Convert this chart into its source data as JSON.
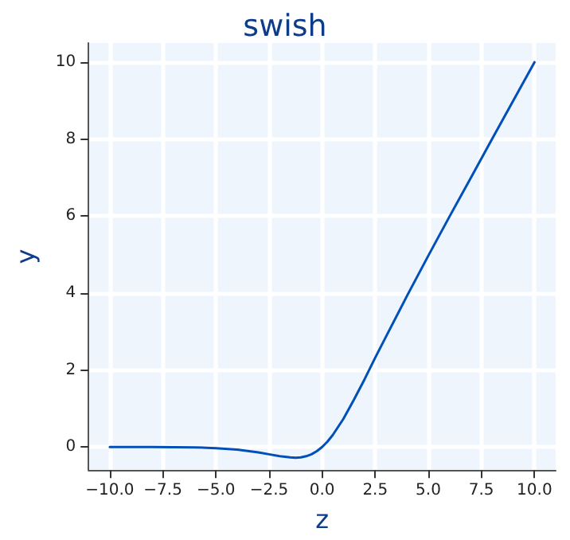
{
  "chart_data": {
    "type": "line",
    "title": "swish",
    "xlabel": "z",
    "ylabel": "y",
    "x": [
      -10,
      -8,
      -6,
      -5,
      -4,
      -3,
      -2.5,
      -2,
      -1.5,
      -1.25,
      -1,
      -0.75,
      -0.5,
      -0.25,
      0,
      0.25,
      0.5,
      1,
      1.5,
      2,
      2.5,
      3,
      4,
      5,
      6,
      7,
      8,
      9,
      10
    ],
    "series": [
      {
        "color": "#0050b8",
        "values": [
          0.0,
          0.0,
          -0.01,
          -0.03,
          -0.07,
          -0.14,
          -0.19,
          -0.24,
          -0.27,
          -0.28,
          -0.27,
          -0.24,
          -0.19,
          -0.11,
          0.0,
          0.14,
          0.31,
          0.73,
          1.23,
          1.76,
          2.32,
          2.86,
          3.93,
          4.97,
          5.99,
          6.99,
          8.0,
          9.0,
          10.0
        ]
      }
    ],
    "xlim": [
      -11,
      11
    ],
    "ylim": [
      -0.6,
      10.5
    ],
    "xticks": [
      {
        "value": -10,
        "label": "−10.0"
      },
      {
        "value": -7.5,
        "label": "−7.5"
      },
      {
        "value": -5,
        "label": "−5.0"
      },
      {
        "value": -2.5,
        "label": "−2.5"
      },
      {
        "value": 0,
        "label": "0.0"
      },
      {
        "value": 2.5,
        "label": "2.5"
      },
      {
        "value": 5,
        "label": "5.0"
      },
      {
        "value": 7.5,
        "label": "7.5"
      },
      {
        "value": 10,
        "label": "10.0"
      }
    ],
    "yticks": [
      0,
      2,
      4,
      6,
      8,
      10
    ],
    "grid": true,
    "line_style": "solid",
    "marker": "none"
  }
}
